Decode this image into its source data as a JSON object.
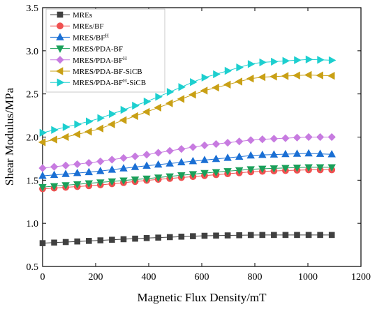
{
  "chart_data": {
    "type": "line",
    "xlabel": "Magnetic Flux Density/mT",
    "ylabel": "Shear Modulus/MPa",
    "xlim": [
      0,
      1200
    ],
    "ylim": [
      0.5,
      3.5
    ],
    "xticks": [
      0,
      200,
      400,
      600,
      800,
      1000,
      1200
    ],
    "yticks": [
      0.5,
      1.0,
      1.5,
      2.0,
      2.5,
      3.0,
      3.5
    ],
    "xtick_labels": [
      "0",
      "200",
      "400",
      "600",
      "800",
      "1000",
      "1200"
    ],
    "ytick_labels": [
      "0.5",
      "1.0",
      "1.5",
      "2.0",
      "2.5",
      "3.0",
      "3.5"
    ],
    "grid": false,
    "legend_position": "top-left",
    "x_start": 0,
    "x_step": 43.6,
    "series": [
      {
        "name": "MREs",
        "sup": "",
        "marker": "square",
        "color": "#404040",
        "control": [
          [
            0,
            0.77
          ],
          [
            200,
            0.8
          ],
          [
            400,
            0.83
          ],
          [
            600,
            0.855
          ],
          [
            800,
            0.865
          ],
          [
            1000,
            0.865
          ],
          [
            1090,
            0.865
          ]
        ]
      },
      {
        "name": "MREs/BF",
        "sup": "",
        "marker": "circle",
        "color": "#f05050",
        "control": [
          [
            0,
            1.4
          ],
          [
            200,
            1.44
          ],
          [
            400,
            1.5
          ],
          [
            600,
            1.55
          ],
          [
            800,
            1.6
          ],
          [
            1000,
            1.62
          ],
          [
            1090,
            1.62
          ]
        ]
      },
      {
        "name": "MRES/BF",
        "sup": "H",
        "marker": "triangle-up",
        "color": "#1a6fd4",
        "control": [
          [
            0,
            1.55
          ],
          [
            200,
            1.6
          ],
          [
            400,
            1.67
          ],
          [
            600,
            1.73
          ],
          [
            800,
            1.79
          ],
          [
            1000,
            1.81
          ],
          [
            1090,
            1.8
          ]
        ]
      },
      {
        "name": "MRES/PDA-BF",
        "sup": "",
        "marker": "triangle-down",
        "color": "#1aa05a",
        "control": [
          [
            0,
            1.42
          ],
          [
            200,
            1.47
          ],
          [
            400,
            1.52
          ],
          [
            600,
            1.58
          ],
          [
            800,
            1.63
          ],
          [
            1000,
            1.65
          ],
          [
            1090,
            1.65
          ]
        ]
      },
      {
        "name": "MRES/PDA-BF",
        "sup": "H",
        "marker": "diamond",
        "color": "#c77be0",
        "control": [
          [
            0,
            1.64
          ],
          [
            200,
            1.71
          ],
          [
            400,
            1.8
          ],
          [
            600,
            1.9
          ],
          [
            800,
            1.97
          ],
          [
            1000,
            2.0
          ],
          [
            1090,
            2.0
          ]
        ]
      },
      {
        "name": "MRES/PDA-BF-SiCB",
        "sup": "",
        "marker": "triangle-left",
        "color": "#c9a015",
        "control": [
          [
            0,
            1.94
          ],
          [
            200,
            2.08
          ],
          [
            400,
            2.3
          ],
          [
            600,
            2.53
          ],
          [
            800,
            2.69
          ],
          [
            1000,
            2.72
          ],
          [
            1090,
            2.71
          ]
        ]
      },
      {
        "name": "MRES/PDA-BF",
        "sup": "H",
        "suffix": "-SiCB",
        "marker": "triangle-right",
        "color": "#1dcfcf",
        "control": [
          [
            0,
            2.05
          ],
          [
            200,
            2.2
          ],
          [
            400,
            2.42
          ],
          [
            600,
            2.68
          ],
          [
            800,
            2.86
          ],
          [
            1000,
            2.9
          ],
          [
            1090,
            2.89
          ]
        ]
      }
    ]
  }
}
